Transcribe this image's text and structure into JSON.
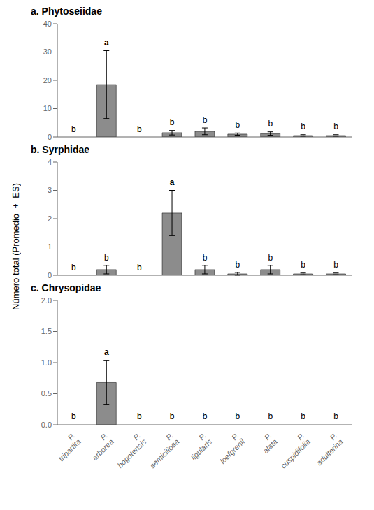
{
  "chart_data": [
    {
      "type": "bar",
      "title": "a. Phytoseiidae",
      "categories": [
        "P. tripartita",
        "P. arborea",
        "P. bogotensis",
        "P. semiciliosa",
        "P. ligularis",
        "P. loefgrenii",
        "P. alata",
        "P. cuspidifolia",
        "P. adulterina"
      ],
      "values": [
        0.0,
        18.5,
        0.0,
        1.5,
        2.0,
        1.0,
        1.2,
        0.5,
        0.5
      ],
      "errors": [
        0.0,
        12.0,
        0.0,
        0.8,
        1.2,
        0.4,
        0.6,
        0.3,
        0.3
      ],
      "letters": [
        "b",
        "a",
        "b",
        "b",
        "b",
        "b",
        "b",
        "b",
        "b"
      ],
      "color": "#8c8c8c",
      "ylim": [
        0,
        40
      ],
      "yticks": [
        0,
        10,
        20,
        30,
        40
      ],
      "tick_labels": "y"
    },
    {
      "type": "bar",
      "title": "b. Syrphidae",
      "ylabel": "Número total (Promedio ± ES)",
      "categories": [
        "P. tripartita",
        "P. arborea",
        "P. bogotensis",
        "P. semiciliosa",
        "P. ligularis",
        "P. loefgrenii",
        "P. alata",
        "P. cuspidifolia",
        "P. adulterina"
      ],
      "values": [
        0.0,
        0.2,
        0.0,
        2.2,
        0.2,
        0.05,
        0.2,
        0.05,
        0.05
      ],
      "errors": [
        0.0,
        0.15,
        0.0,
        0.8,
        0.15,
        0.05,
        0.15,
        0.03,
        0.03
      ],
      "letters": [
        "b",
        "b",
        "b",
        "a",
        "b",
        "b",
        "b",
        "b",
        "b"
      ],
      "color": "#8c8c8c",
      "ylim": [
        0,
        4
      ],
      "yticks": [
        0,
        1,
        2,
        3,
        4
      ],
      "tick_labels": "y"
    },
    {
      "type": "bar",
      "title": "c. Chrysopidae",
      "categories": [
        "P. tripartita",
        "P. arborea",
        "P. bogotensis",
        "P. semiciliosa",
        "P. ligularis",
        "P. loefgrenii",
        "P. alata",
        "P. cuspidifolia",
        "P. adulterina"
      ],
      "values": [
        0.0,
        0.68,
        0.0,
        0.0,
        0.0,
        0.0,
        0.0,
        0.0,
        0.0
      ],
      "errors": [
        0.0,
        0.35,
        0.0,
        0.0,
        0.0,
        0.0,
        0.0,
        0.0,
        0.0
      ],
      "letters": [
        "b",
        "a",
        "b",
        "b",
        "b",
        "b",
        "b",
        "b",
        "b"
      ],
      "color": "#8c8c8c",
      "ylim": [
        0,
        2.0
      ],
      "yticks": [
        {
          "value": 0.0,
          "label": "0.0"
        },
        0.5,
        {
          "value": 1.0,
          "label": "1.0"
        },
        1.5,
        {
          "value": 2.0,
          "label": "2.0"
        }
      ]
    }
  ]
}
